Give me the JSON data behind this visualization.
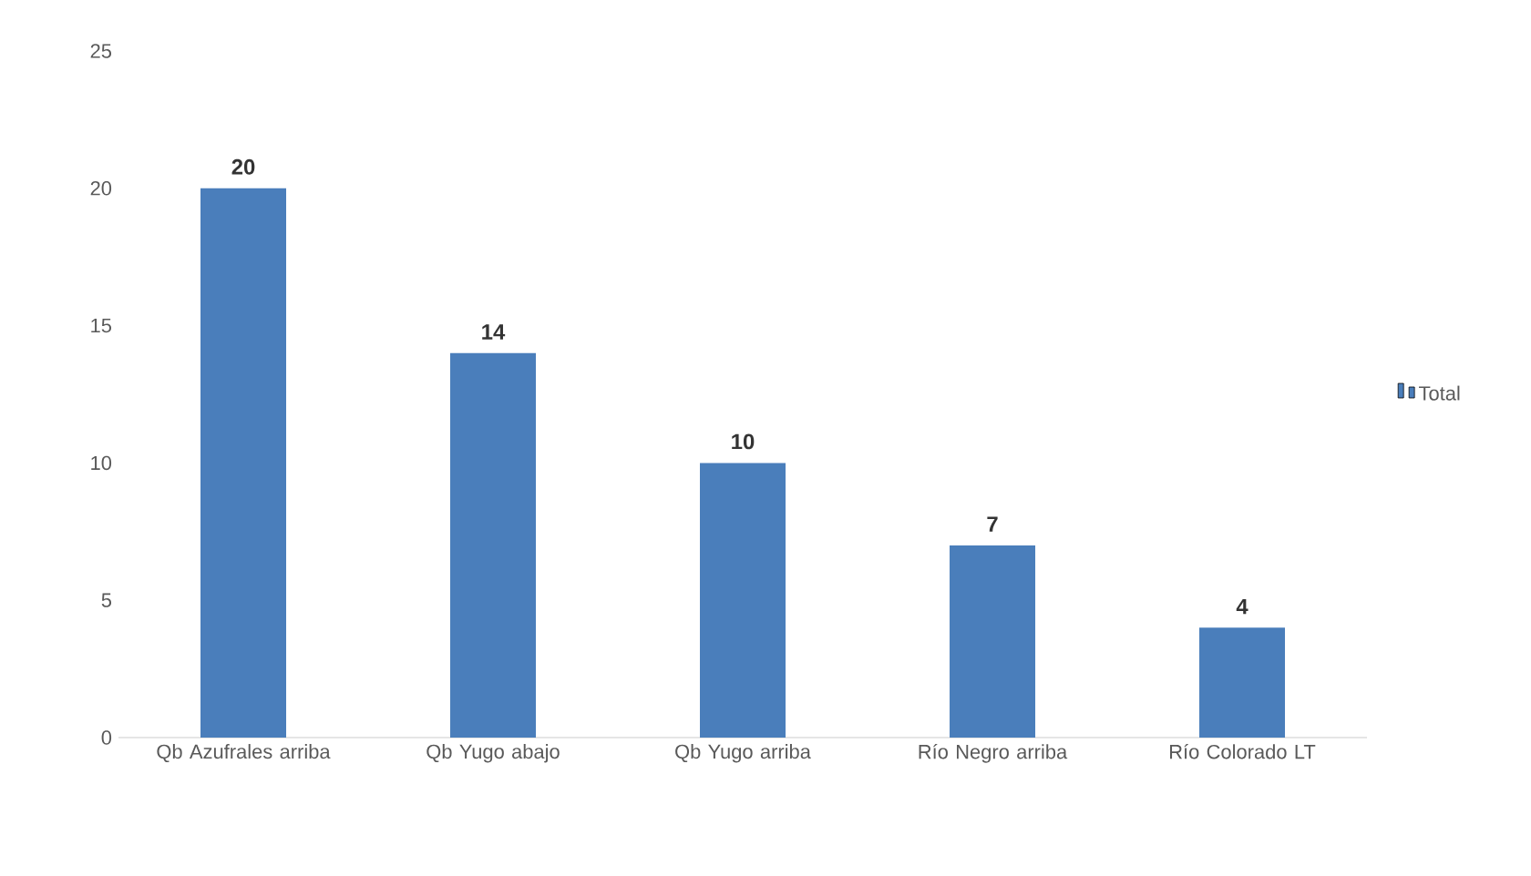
{
  "chart_data": {
    "type": "bar",
    "categories": [
      "Qb Azufrales arriba",
      "Qb Yugo abajo",
      "Qb Yugo arriba",
      "Río Negro arriba",
      "Río Colorado LT"
    ],
    "series": [
      {
        "name": "Total",
        "color": "#4a7ebb",
        "values": [
          20,
          14,
          10,
          7,
          4
        ]
      }
    ],
    "ylim": [
      0,
      25
    ],
    "yticks": [
      0,
      5,
      10,
      15,
      20,
      25
    ],
    "data_labels": true,
    "legend": "right",
    "grid": false
  }
}
